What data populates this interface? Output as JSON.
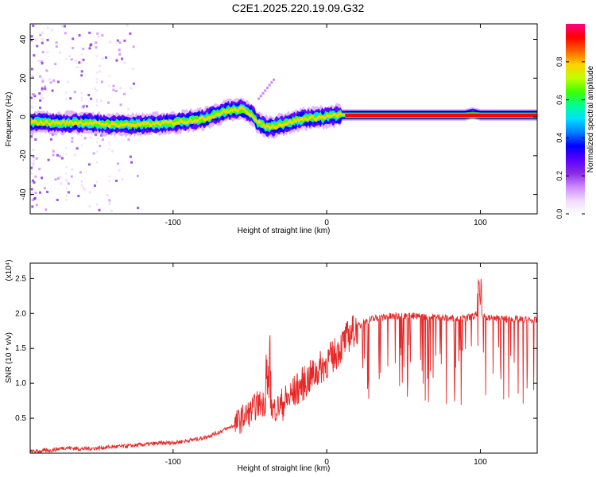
{
  "title": "C2E1.2025.220.19.09.G32",
  "colors": {
    "snr_line": "#e82828",
    "background": "#ffffff",
    "axis": "#000000",
    "colormap": [
      "#ffffff",
      "#f0d8ff",
      "#cc88ff",
      "#8a2be2",
      "#5a00ff",
      "#0000ff",
      "#0080ff",
      "#00e0ff",
      "#00ff90",
      "#40ff00",
      "#c0ff00",
      "#ffd000",
      "#ff6000",
      "#ff0000",
      "#ff0080"
    ]
  },
  "chart_data": [
    {
      "type": "heatmap",
      "xlabel": "Height of straight line (km)",
      "ylabel": "Frequency (Hz)",
      "xlim": [
        -193,
        137
      ],
      "ylim": [
        -50,
        48
      ],
      "x_ticks": [
        -100,
        0,
        100
      ],
      "x_tick_labels": [
        "-100",
        "0",
        "100"
      ],
      "y_ticks": [
        -40,
        -20,
        0,
        20,
        40
      ],
      "y_tick_labels": [
        "-40",
        "-20",
        "0",
        "20",
        "40"
      ],
      "ridge": {
        "description_points_x": [
          -193,
          -180,
          -160,
          -140,
          -120,
          -100,
          -80,
          -65,
          -55,
          -48,
          -45,
          -40,
          -35,
          -25,
          -15,
          0,
          10,
          50,
          90,
          95,
          100,
          137
        ],
        "description_points_y": [
          -3,
          -3,
          -3,
          -4,
          -4,
          -3,
          -1,
          3,
          4,
          1,
          -3,
          -5,
          -5,
          -3,
          -1,
          0,
          1,
          1,
          1,
          2,
          1,
          1
        ]
      },
      "colorbar": {
        "label": "Normalized spectral amplitude",
        "range": [
          0,
          1
        ],
        "ticks": [
          0,
          0.2,
          0.4,
          0.6,
          0.8
        ],
        "tick_labels": [
          "0.0",
          "0.2",
          "0.4",
          "0.6",
          "0.8"
        ]
      }
    },
    {
      "type": "line",
      "xlabel": "Height of straight line (km)",
      "ylabel": "SNR (10 * v/v)",
      "y_multiplier_label": "(x10⁴)",
      "xlim": [
        -193,
        137
      ],
      "ylim": [
        0,
        2.72
      ],
      "x_ticks": [
        -100,
        0,
        100
      ],
      "x_tick_labels": [
        "-100",
        "0",
        "100"
      ],
      "y_ticks": [
        0.5,
        1.0,
        1.5,
        2.0,
        2.5
      ],
      "y_tick_labels": [
        "0.5",
        "1.0",
        "1.5",
        "2.0",
        "2.5"
      ],
      "series": [
        {
          "x": [
            -193,
            -180,
            -170,
            -160,
            -150,
            -140,
            -130,
            -120,
            -110,
            -100,
            -90,
            -80,
            -70,
            -60,
            -55,
            -50,
            -45,
            -40,
            -35,
            -30,
            -25,
            -20,
            -15,
            -10,
            -5,
            0,
            5,
            10,
            15,
            20,
            25,
            30,
            40,
            50,
            60,
            70,
            80,
            90,
            95,
            100,
            105,
            110,
            120,
            130,
            137
          ],
          "y": [
            0.02,
            0.04,
            0.08,
            0.06,
            0.07,
            0.09,
            0.1,
            0.12,
            0.14,
            0.15,
            0.18,
            0.22,
            0.3,
            0.4,
            0.5,
            0.58,
            0.7,
            0.72,
            0.62,
            0.68,
            0.78,
            0.9,
            1.0,
            1.1,
            1.2,
            1.3,
            1.4,
            1.55,
            1.7,
            1.8,
            1.88,
            1.92,
            1.95,
            1.96,
            1.95,
            1.94,
            1.93,
            1.92,
            1.95,
            2.0,
            1.93,
            1.92,
            1.91,
            1.9,
            1.89
          ]
        }
      ]
    }
  ]
}
